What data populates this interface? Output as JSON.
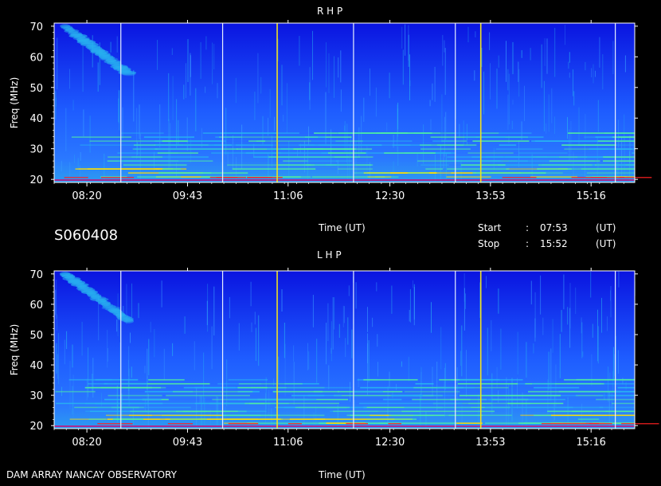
{
  "station_id": "S060408",
  "footer_left": "DAM ARRAY   NANCAY OBSERVATORY",
  "time_label": "Time (UT)",
  "start": {
    "label": "Start",
    "sep": ":",
    "value": "07:53",
    "unit": "(UT)"
  },
  "stop": {
    "label": "Stop",
    "sep": ":",
    "value": "15:52",
    "unit": "(UT)"
  },
  "chart_data": [
    {
      "type": "heatmap",
      "title": "R H P",
      "xlabel": "Time (UT)",
      "ylabel": "Freq (MHz)",
      "x_tick_labels": [
        "08:20",
        "09:43",
        "11:06",
        "12:30",
        "13:53",
        "15:16"
      ],
      "x_ticks_hours": [
        8.333,
        9.717,
        11.1,
        12.5,
        13.883,
        15.267
      ],
      "xlim_hours": [
        7.883,
        15.867
      ],
      "y_ticks": [
        20,
        30,
        40,
        50,
        60,
        70
      ],
      "ylim": [
        19,
        71
      ],
      "white_vlines_hours": [
        8.8,
        10.2,
        12.0,
        13.4,
        15.6
      ],
      "yellow_vlines_hours": [
        10.95,
        13.75
      ],
      "colormap": [
        "#0a14e0",
        "#1e5cff",
        "#28b4f0",
        "#50f0a0",
        "#ffe000",
        "#ff2020"
      ]
    },
    {
      "type": "heatmap",
      "title": "L H P",
      "xlabel": "Time (UT)",
      "ylabel": "Freq (MHz)",
      "x_tick_labels": [
        "08:20",
        "09:43",
        "11:06",
        "12:30",
        "13:53",
        "15:16"
      ],
      "x_ticks_hours": [
        8.333,
        9.717,
        11.1,
        12.5,
        13.883,
        15.267
      ],
      "xlim_hours": [
        7.883,
        15.867
      ],
      "y_ticks": [
        20,
        30,
        40,
        50,
        60,
        70
      ],
      "ylim": [
        19,
        71
      ],
      "white_vlines_hours": [
        8.8,
        10.2,
        12.0,
        13.4,
        15.6
      ],
      "yellow_vlines_hours": [
        10.95,
        13.75
      ],
      "colormap": [
        "#0a14e0",
        "#1e5cff",
        "#28b4f0",
        "#50f0a0",
        "#ffe000",
        "#ff2020"
      ]
    }
  ]
}
